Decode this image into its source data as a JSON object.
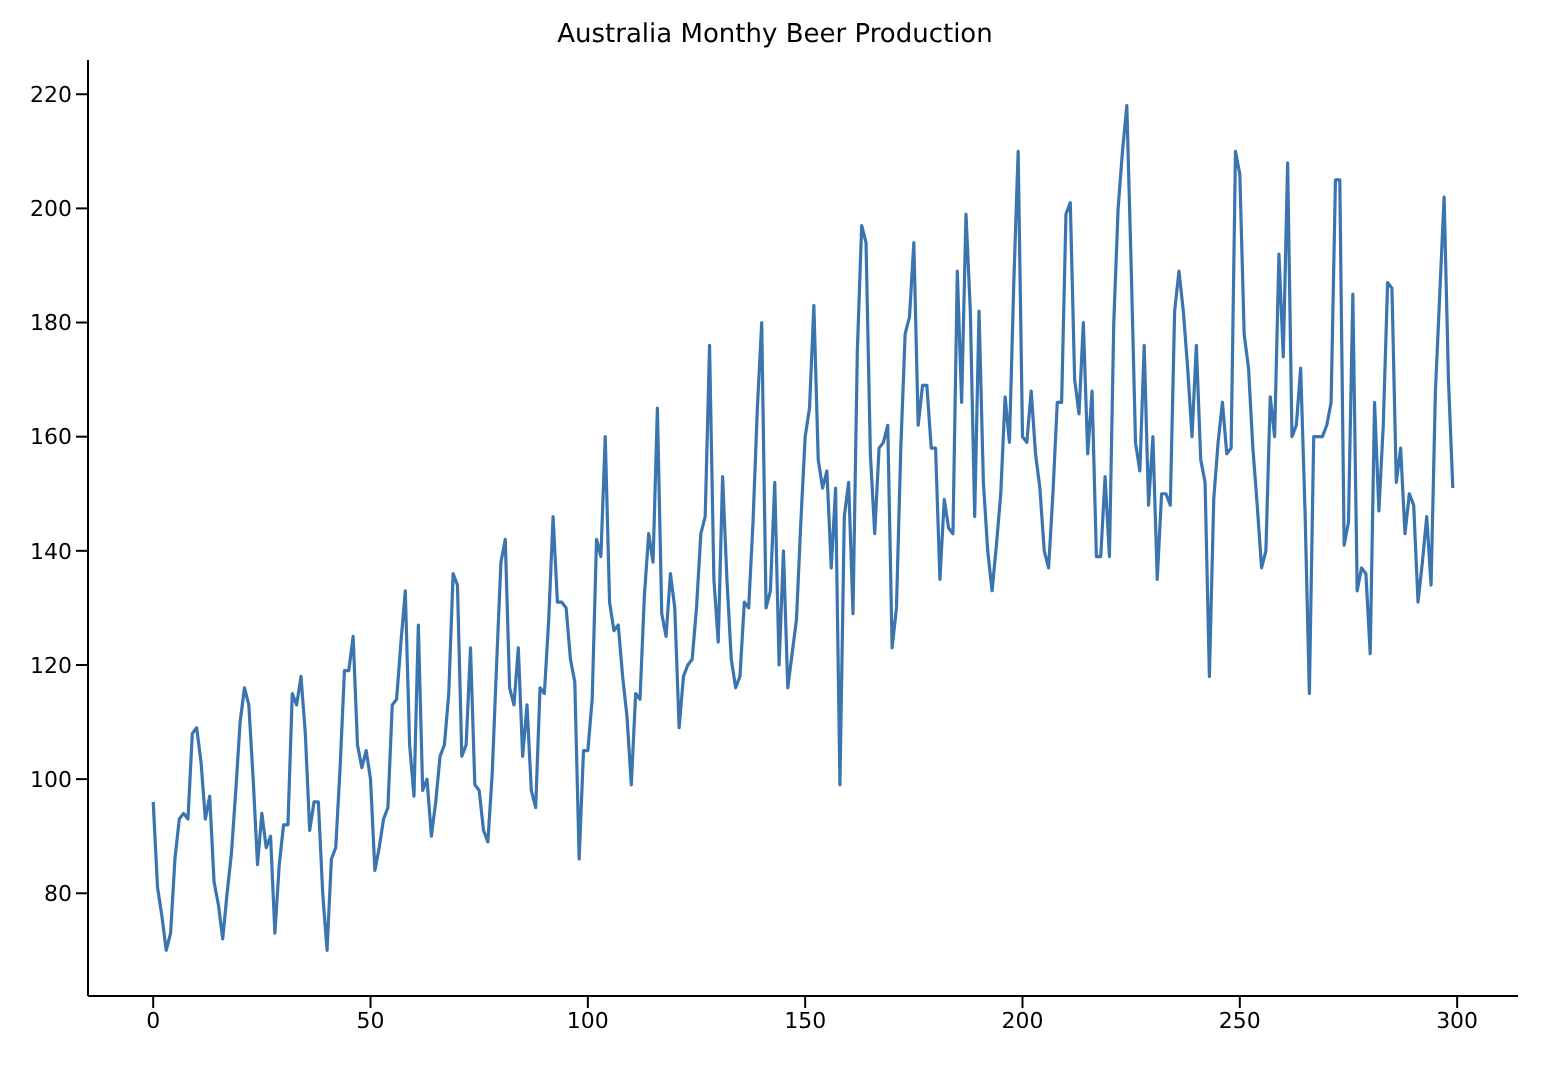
{
  "chart_data": {
    "type": "line",
    "title": "Australia Monthy Beer Production",
    "x": [
      0,
      1,
      2,
      3,
      4,
      5,
      6,
      7,
      8,
      9,
      10,
      11,
      12,
      13,
      14,
      15,
      16,
      17,
      18,
      19,
      20,
      21,
      22,
      23,
      24,
      25,
      26,
      27,
      28,
      29,
      30,
      31,
      32,
      33,
      34,
      35,
      36,
      37,
      38,
      39,
      40,
      41,
      42,
      43,
      44,
      45,
      46,
      47,
      48,
      49,
      50,
      51,
      52,
      53,
      54,
      55,
      56,
      57,
      58,
      59,
      60,
      61,
      62,
      63,
      64,
      65,
      66,
      67,
      68,
      69,
      70,
      71,
      72,
      73,
      74,
      75,
      76,
      77,
      78,
      79,
      80,
      81,
      82,
      83,
      84,
      85,
      86,
      87,
      88,
      89,
      90,
      91,
      92,
      93,
      94,
      95,
      96,
      97,
      98,
      99,
      100,
      101,
      102,
      103,
      104,
      105,
      106,
      107,
      108,
      109,
      110,
      111,
      112,
      113,
      114,
      115,
      116,
      117,
      118,
      119,
      120,
      121,
      122,
      123,
      124,
      125,
      126,
      127,
      128,
      129,
      130,
      131,
      132,
      133,
      134,
      135,
      136,
      137,
      138,
      139,
      140,
      141,
      142,
      143,
      144,
      145,
      146,
      147,
      148,
      149,
      150,
      151,
      152,
      153,
      154,
      155,
      156,
      157,
      158,
      159,
      160,
      161,
      162,
      163,
      164,
      165,
      166,
      167,
      168,
      169,
      170,
      171,
      172,
      173,
      174,
      175,
      176,
      177,
      178,
      179,
      180,
      181,
      182,
      183,
      184,
      185,
      186,
      187,
      188,
      189,
      190,
      191,
      192,
      193,
      194,
      195,
      196,
      197,
      198,
      199,
      200,
      201,
      202,
      203,
      204,
      205,
      206,
      207,
      208,
      209,
      210,
      211,
      212,
      213,
      214,
      215,
      216,
      217,
      218,
      219,
      220,
      221,
      222,
      223,
      224,
      225,
      226,
      227,
      228,
      229,
      230,
      231,
      232,
      233,
      234,
      235,
      236,
      237,
      238,
      239,
      240,
      241,
      242,
      243,
      244,
      245,
      246,
      247,
      248,
      249,
      250,
      251,
      252,
      253,
      254,
      255,
      256,
      257,
      258,
      259,
      260,
      261,
      262,
      263,
      264,
      265,
      266,
      267,
      268,
      269,
      270,
      271,
      272,
      273,
      274,
      275,
      276,
      277,
      278,
      279,
      280,
      281,
      282,
      283,
      284,
      285,
      286,
      287,
      288,
      289,
      290,
      291,
      292,
      293,
      294,
      295,
      296,
      297,
      298,
      299
    ],
    "series": [
      {
        "color": "#3b75af",
        "values": [
          96,
          81,
          76,
          70,
          73,
          86,
          93,
          94,
          93,
          108,
          109,
          103,
          93,
          97,
          82,
          78,
          72,
          80,
          87,
          98,
          110,
          116,
          113,
          100,
          85,
          94,
          88,
          90,
          73,
          85,
          92,
          92,
          115,
          113,
          118,
          108,
          91,
          96,
          96,
          80,
          70,
          86,
          88,
          102,
          119,
          119,
          125,
          106,
          102,
          105,
          100,
          84,
          88,
          93,
          95,
          113,
          114,
          124,
          133,
          106,
          97,
          127,
          98,
          100,
          90,
          96,
          104,
          106,
          115,
          136,
          134,
          104,
          106,
          123,
          99,
          98,
          91,
          89,
          101,
          120,
          138,
          142,
          116,
          113,
          123,
          104,
          113,
          98,
          95,
          116,
          115,
          128,
          146,
          131,
          131,
          130,
          121,
          117,
          86,
          105,
          105,
          114,
          142,
          139,
          160,
          131,
          126,
          127,
          118,
          111,
          99,
          115,
          114,
          132,
          143,
          138,
          165,
          129,
          125,
          136,
          130,
          109,
          118,
          120,
          121,
          130,
          143,
          146,
          176,
          135,
          124,
          153,
          135,
          121,
          116,
          118,
          131,
          130,
          145,
          165,
          180,
          130,
          133,
          152,
          120,
          140,
          116,
          122,
          128,
          145,
          160,
          165,
          183,
          156,
          151,
          154,
          137,
          151,
          99,
          146,
          152,
          129,
          175,
          197,
          194,
          157,
          143,
          158,
          159,
          162,
          123,
          130,
          158,
          178,
          181,
          194,
          162,
          169,
          169,
          158,
          158,
          135,
          149,
          144,
          143,
          189,
          166,
          199,
          182,
          146,
          182,
          152,
          140,
          133,
          141,
          150,
          167,
          159,
          187,
          210,
          160,
          159,
          168,
          157,
          151,
          140,
          137,
          150,
          166,
          166,
          199,
          201,
          170,
          164,
          180,
          157,
          168,
          139,
          139,
          153,
          139,
          180,
          200,
          210,
          218,
          190,
          159,
          154,
          176,
          148,
          160,
          135,
          150,
          150,
          148,
          182,
          189,
          182,
          172,
          160,
          176,
          156,
          152,
          118,
          149,
          159,
          166,
          157,
          158,
          210,
          206,
          178,
          172,
          158,
          148,
          137,
          140,
          167,
          160,
          192,
          174,
          208,
          160,
          162,
          172,
          147,
          115,
          160,
          160,
          160,
          162,
          166,
          205,
          205,
          141,
          145,
          185,
          133,
          137,
          136,
          122,
          166,
          147,
          162,
          187,
          186,
          152,
          158,
          143,
          150,
          148,
          131,
          138,
          146,
          134,
          168,
          185,
          202,
          170,
          151
        ]
      }
    ],
    "xlim": [
      -15,
      314
    ],
    "xticks": [
      0,
      50,
      100,
      150,
      200,
      250,
      300
    ],
    "ylim": [
      62,
      226
    ],
    "yticks": [
      80,
      100,
      120,
      140,
      160,
      180,
      200,
      220
    ],
    "grid": false,
    "legend": false,
    "marker": "none",
    "line_style": "solid"
  }
}
